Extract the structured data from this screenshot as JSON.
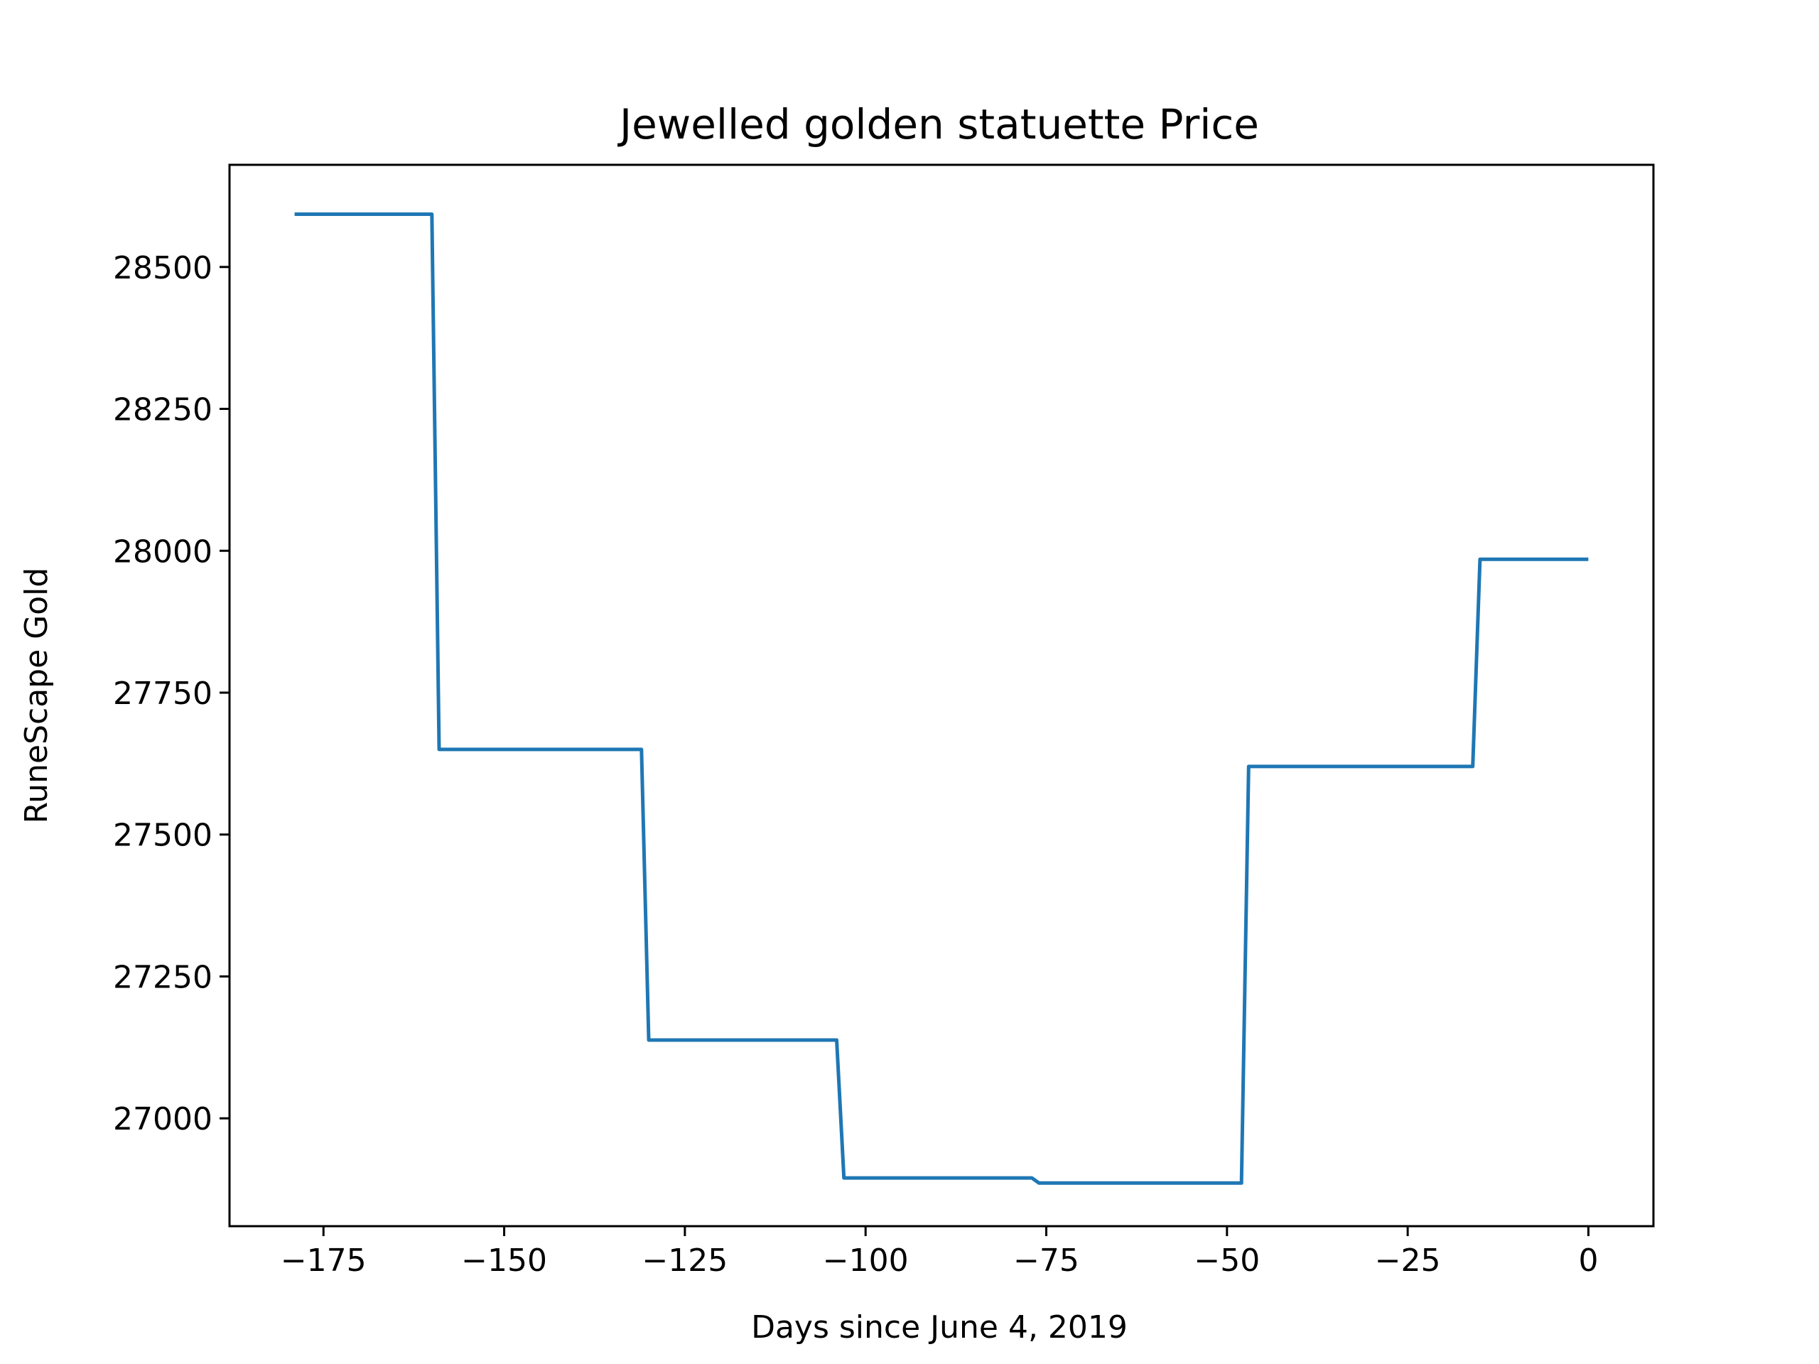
{
  "chart_data": {
    "type": "line",
    "title": "Jewelled golden statuette Price",
    "xlabel": "Days since June 4, 2019",
    "ylabel": "RuneScape Gold",
    "xlim": [
      -188,
      9
    ],
    "ylim": [
      26810,
      28680
    ],
    "grid": false,
    "xticks": [
      -175,
      -150,
      -125,
      -100,
      -75,
      -50,
      -25,
      0
    ],
    "xtick_labels": [
      "−175",
      "−150",
      "−125",
      "−100",
      "−75",
      "−50",
      "−25",
      "0"
    ],
    "yticks": [
      27000,
      27250,
      27500,
      27750,
      28000,
      28250,
      28500
    ],
    "ytick_labels": [
      "27000",
      "27250",
      "27500",
      "27750",
      "28000",
      "28250",
      "28500"
    ],
    "series": [
      {
        "color": "#1f77b4",
        "points": [
          [
            -179,
            28593
          ],
          [
            -160,
            28593
          ],
          [
            -159,
            27650
          ],
          [
            -131,
            27650
          ],
          [
            -130,
            27138
          ],
          [
            -104,
            27138
          ],
          [
            -103,
            26895
          ],
          [
            -77,
            26895
          ],
          [
            -76,
            26886
          ],
          [
            -48,
            26886
          ],
          [
            -47,
            27620
          ],
          [
            -16,
            27620
          ],
          [
            -15,
            27985
          ],
          [
            0,
            27985
          ]
        ]
      }
    ]
  }
}
